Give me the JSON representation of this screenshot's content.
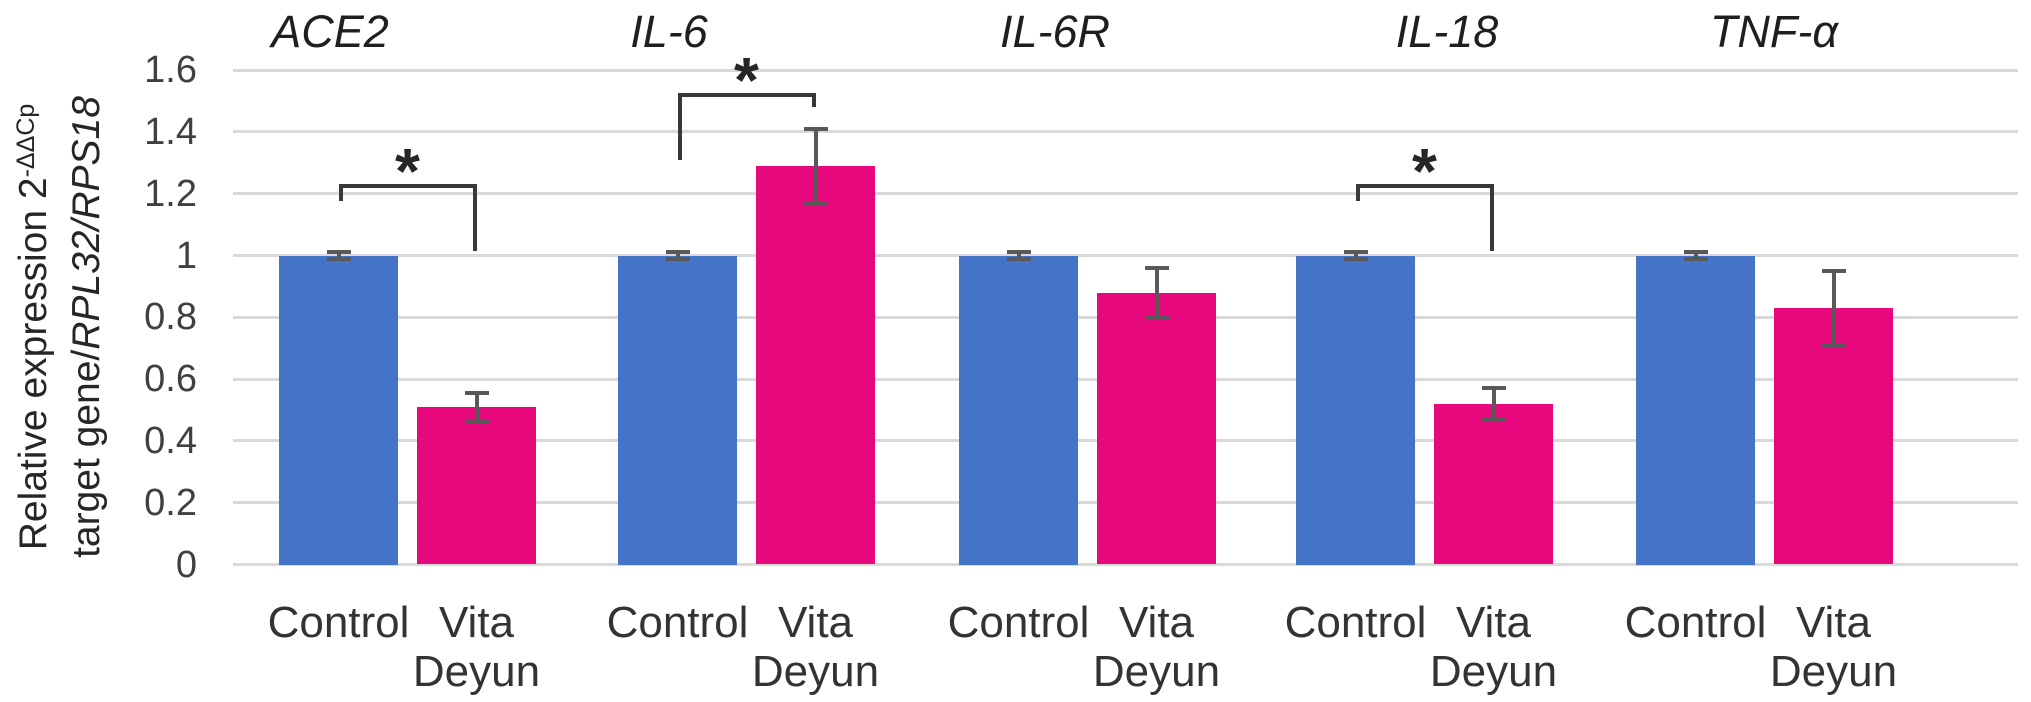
{
  "figure": {
    "background": "#ffffff"
  },
  "y_axis": {
    "title": {
      "line1_text": "Relative expression 2",
      "line1_sup": "-ΔΔCp",
      "line2_normal": "target gene/",
      "line2_italic": "RPL32/RPS18"
    },
    "tick_labels": [
      "0",
      "0.2",
      "0.4",
      "0.6",
      "0.8",
      "1",
      "1.2",
      "1.4",
      "1.6"
    ]
  },
  "chart_data": {
    "type": "bar",
    "title": "",
    "ylabel": "Relative expression 2^(-ΔΔCp) target gene/RPL32/RPS18",
    "xlabel": "",
    "categories": [
      "ACE2",
      "IL-6",
      "IL-6R",
      "IL-18",
      "TNF-α"
    ],
    "series": [
      {
        "name": "Control",
        "color": "#4573C8",
        "values": [
          1,
          1,
          1,
          1,
          1
        ],
        "errors": [
          0.01,
          0.01,
          0.01,
          0.01,
          0.01
        ]
      },
      {
        "name": "Vita Deyun",
        "color": "#E8087E",
        "values": [
          0.51,
          1.29,
          0.88,
          0.52,
          0.83
        ],
        "errors": [
          0.045,
          0.12,
          0.08,
          0.05,
          0.12
        ]
      }
    ],
    "x_tick_labels_per_bar": [
      "Control",
      "Vita\nDeyun"
    ],
    "ylim": [
      0,
      1.6
    ],
    "ytick_step": 0.2,
    "grid": true,
    "legend_position": "none",
    "significance": [
      {
        "group_index": 0,
        "category": "ACE2",
        "label": "*",
        "bracket_y": 1.23,
        "left_drop_to": 1.175,
        "right_drop_to": 1.015
      },
      {
        "group_index": 1,
        "category": "IL-6",
        "label": "*",
        "bracket_y": 1.525,
        "left_drop_to": 1.31,
        "right_drop_to": 1.48
      },
      {
        "group_index": 3,
        "category": "IL-18",
        "label": "*",
        "bracket_y": 1.23,
        "left_drop_to": 1.175,
        "right_drop_to": 1.015
      }
    ],
    "colors": {
      "control_bar": "#4573C8",
      "treatment_bar": "#E8087E",
      "gridline": "#D9D9D9",
      "error_bar": "#595959",
      "bracket": "#383838",
      "tick_text": "#404040",
      "label_text": "#333333",
      "title_text": "#1f1f1f"
    }
  }
}
